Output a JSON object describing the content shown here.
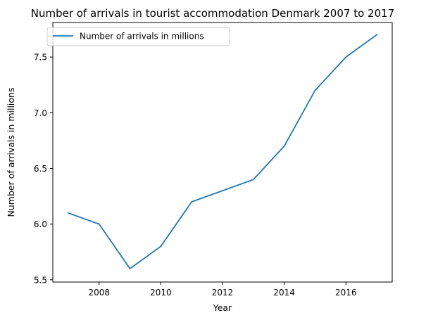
{
  "chart_data": {
    "type": "line",
    "title": "Number of arrivals in tourist accommodation Denmark 2007 to 2017",
    "xlabel": "Year",
    "ylabel": "Number of arrivals in millions",
    "xlim": [
      2006.5,
      2017.5
    ],
    "ylim": [
      5.48,
      7.81
    ],
    "x_ticks": [
      2008,
      2010,
      2012,
      2014,
      2016
    ],
    "y_ticks": [
      5.5,
      6.0,
      6.5,
      7.0,
      7.5
    ],
    "x_tick_labels": [
      "2008",
      "2010",
      "2012",
      "2014",
      "2016"
    ],
    "y_tick_labels": [
      "5.5",
      "6.0",
      "6.5",
      "7.0",
      "7.5"
    ],
    "grid": false,
    "legend_position": "top-left",
    "x": [
      2007,
      2008,
      2009,
      2010,
      2011,
      2012,
      2013,
      2014,
      2015,
      2016,
      2017
    ],
    "series": [
      {
        "name": "Number of arrivals in millions",
        "color": "#1f77b4",
        "values": [
          6.1,
          6.0,
          5.6,
          5.8,
          6.2,
          6.3,
          6.4,
          6.7,
          7.2,
          7.5,
          7.7
        ]
      }
    ]
  }
}
